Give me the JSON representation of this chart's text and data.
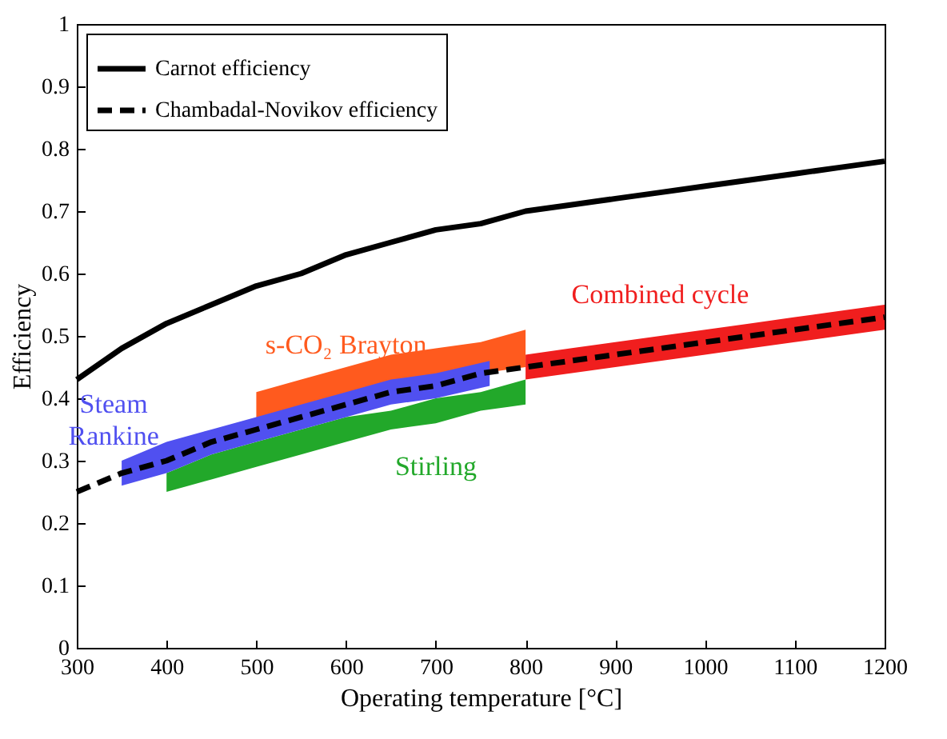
{
  "chart_data": {
    "type": "line",
    "xlabel": "Operating temperature [°C]",
    "ylabel": "Efficiency",
    "xlim": [
      300,
      1200
    ],
    "ylim": [
      0,
      1
    ],
    "xticks": [
      300,
      400,
      500,
      600,
      700,
      800,
      900,
      1000,
      1100,
      1200
    ],
    "yticks": [
      0,
      0.1,
      0.2,
      0.3,
      0.4,
      0.5,
      0.6,
      0.7,
      0.8,
      0.9,
      1
    ],
    "grid": false,
    "legend": "top left",
    "series": [
      {
        "name": "Stirling",
        "color": "#22a82a",
        "x": [
          400,
          450,
          500,
          550,
          600,
          650,
          700,
          750,
          800
        ],
        "values": [
          null,
          null,
          null,
          null,
          null,
          null,
          null,
          null,
          null
        ],
        "lower": [
          0.25,
          0.27,
          0.29,
          0.31,
          0.33,
          0.35,
          0.36,
          0.38,
          0.39
        ],
        "upper": [
          0.28,
          0.31,
          0.33,
          0.35,
          0.37,
          0.38,
          0.4,
          0.41,
          0.43
        ]
      },
      {
        "name": "s-CO₂ Brayton",
        "color": "#ff5a1e",
        "x": [
          500,
          550,
          600,
          650,
          700,
          750,
          800
        ],
        "values": [
          null,
          null,
          null,
          null,
          null,
          null,
          null
        ],
        "lower": [
          0.35,
          0.37,
          0.39,
          0.41,
          0.42,
          0.44,
          0.45
        ],
        "upper": [
          0.41,
          0.43,
          0.45,
          0.47,
          0.48,
          0.49,
          0.51
        ]
      },
      {
        "name": "Steam Rankine",
        "color": "#5050f0",
        "x": [
          350,
          400,
          450,
          500,
          550,
          600,
          650,
          700,
          760
        ],
        "values": [
          null,
          null,
          null,
          null,
          null,
          null,
          null,
          null,
          null
        ],
        "lower": [
          0.26,
          0.28,
          0.31,
          0.33,
          0.35,
          0.37,
          0.39,
          0.4,
          0.42
        ],
        "upper": [
          0.3,
          0.33,
          0.35,
          0.37,
          0.39,
          0.41,
          0.43,
          0.44,
          0.46
        ]
      },
      {
        "name": "Combined cycle",
        "color": "#f01e1e",
        "x": [
          800,
          850,
          900,
          950,
          1000,
          1050,
          1100,
          1150,
          1200
        ],
        "values": [
          null,
          null,
          null,
          null,
          null,
          null,
          null,
          null,
          null
        ],
        "lower": [
          0.43,
          0.44,
          0.45,
          0.46,
          0.47,
          0.48,
          0.49,
          0.5,
          0.51
        ],
        "upper": [
          0.47,
          0.48,
          0.49,
          0.5,
          0.51,
          0.52,
          0.53,
          0.54,
          0.55
        ]
      },
      {
        "name": "Carnot efficiency",
        "color": "#000000",
        "line_style": "solid",
        "x": [
          300,
          350,
          400,
          450,
          500,
          550,
          600,
          650,
          700,
          750,
          800,
          850,
          900,
          950,
          1000,
          1050,
          1100,
          1150,
          1200
        ],
        "values": [
          0.43,
          0.48,
          0.52,
          0.55,
          0.58,
          0.6,
          0.63,
          0.65,
          0.67,
          0.68,
          0.7,
          0.71,
          0.72,
          0.73,
          0.74,
          0.75,
          0.76,
          0.77,
          0.78
        ]
      },
      {
        "name": "Chambadal-Novikov efficiency",
        "color": "#000000",
        "line_style": "dashed",
        "x": [
          300,
          350,
          400,
          450,
          500,
          550,
          600,
          650,
          700,
          750,
          800,
          850,
          900,
          950,
          1000,
          1050,
          1100,
          1150,
          1200
        ],
        "values": [
          0.25,
          0.28,
          0.3,
          0.33,
          0.35,
          0.37,
          0.39,
          0.41,
          0.42,
          0.44,
          0.45,
          0.46,
          0.47,
          0.48,
          0.49,
          0.5,
          0.51,
          0.52,
          0.53
        ]
      }
    ]
  }
}
